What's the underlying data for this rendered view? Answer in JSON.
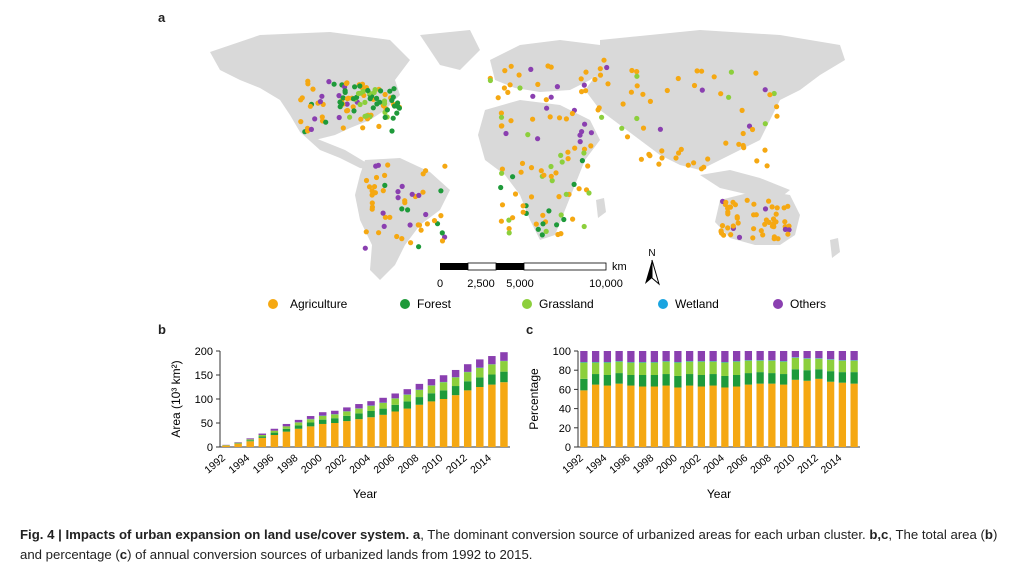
{
  "panels": {
    "a": "a",
    "b": "b",
    "c": "c"
  },
  "colors": {
    "Agriculture": "#f5a812",
    "Forest": "#1e9a3a",
    "Grassland": "#8ccf3c",
    "Wetland": "#1aa4e0",
    "Others": "#8a3fb0",
    "land": "#d9d9d9"
  },
  "map": {
    "scalebar_unit": "km",
    "scalebar_ticks": [
      "0",
      "2,500",
      "5,000",
      "10,000"
    ],
    "north_label": "N",
    "legend": [
      "Agriculture",
      "Forest",
      "Grassland",
      "Wetland",
      "Others"
    ]
  },
  "chart_data": [
    {
      "panel": "b",
      "type": "bar",
      "stacked": true,
      "xlabel": "Year",
      "ylabel": "Area (10³ km²)",
      "ylim": [
        0,
        200
      ],
      "yticks": [
        0,
        50,
        100,
        150,
        200
      ],
      "categories": [
        "1992",
        "1993",
        "1994",
        "1995",
        "1996",
        "1997",
        "1998",
        "1999",
        "2000",
        "2001",
        "2002",
        "2003",
        "2004",
        "2005",
        "2006",
        "2007",
        "2008",
        "2009",
        "2010",
        "2011",
        "2012",
        "2013",
        "2014",
        "2015"
      ],
      "xtick_labels": [
        "1992",
        "1994",
        "1996",
        "1998",
        "2000",
        "2002",
        "2004",
        "2006",
        "2008",
        "2010",
        "2012",
        "2014"
      ],
      "series": [
        {
          "name": "Agriculture",
          "values": [
            3,
            7,
            12,
            19,
            25,
            32,
            38,
            43,
            48,
            50,
            54,
            58,
            62,
            67,
            74,
            80,
            88,
            95,
            100,
            108,
            118,
            125,
            130,
            135
          ]
        },
        {
          "name": "Forest",
          "values": [
            0.5,
            1,
            2,
            3,
            5,
            6,
            7,
            8,
            9,
            10,
            11,
            12,
            13,
            13,
            14,
            15,
            16,
            17,
            18,
            19,
            19,
            20,
            21,
            22
          ]
        },
        {
          "name": "Grassland",
          "values": [
            0.5,
            1,
            2,
            3,
            4,
            5,
            6,
            7,
            8,
            8,
            9,
            10,
            11,
            12,
            13,
            14,
            15,
            16,
            17,
            18,
            19,
            20,
            21,
            22
          ]
        },
        {
          "name": "Wetland",
          "values": [
            0,
            0,
            0,
            0,
            0,
            0,
            0.5,
            0.5,
            0.5,
            0.5,
            0.5,
            0.5,
            0.5,
            0.5,
            0.5,
            0.5,
            0.5,
            0.5,
            0.5,
            0.5,
            0.5,
            0.5,
            0.5,
            0.5
          ]
        },
        {
          "name": "Others",
          "values": [
            0.5,
            1,
            2,
            3,
            4,
            5,
            5,
            6,
            7,
            7,
            8,
            9,
            9,
            10,
            10,
            11,
            12,
            13,
            14,
            15,
            16,
            17,
            17,
            18
          ]
        }
      ]
    },
    {
      "panel": "c",
      "type": "bar",
      "stacked": true,
      "xlabel": "Year",
      "ylabel": "Percentage",
      "ylim": [
        0,
        100
      ],
      "yticks": [
        0,
        20,
        40,
        60,
        80,
        100
      ],
      "categories": [
        "1992",
        "1993",
        "1994",
        "1995",
        "1996",
        "1997",
        "1998",
        "1999",
        "2000",
        "2001",
        "2002",
        "2003",
        "2004",
        "2005",
        "2006",
        "2007",
        "2008",
        "2009",
        "2010",
        "2011",
        "2012",
        "2013",
        "2014",
        "2015"
      ],
      "xtick_labels": [
        "1992",
        "1994",
        "1996",
        "1998",
        "2000",
        "2002",
        "2004",
        "2006",
        "2008",
        "2010",
        "2012",
        "2014"
      ],
      "series": [
        {
          "name": "Agriculture",
          "values": [
            59,
            65,
            64,
            66,
            64,
            63,
            63,
            64,
            62,
            64,
            63,
            64,
            62,
            63,
            65,
            66,
            66,
            65,
            70,
            69,
            71,
            68,
            67,
            66
          ]
        },
        {
          "name": "Forest",
          "values": [
            12,
            11,
            11,
            11,
            11,
            12,
            12,
            12,
            12,
            12,
            12,
            12,
            12,
            12,
            12,
            12,
            11,
            11,
            11,
            11,
            10,
            11,
            11,
            12
          ]
        },
        {
          "name": "Grassland",
          "values": [
            17,
            12,
            13,
            12,
            13,
            13,
            13,
            13,
            14,
            13,
            14,
            13,
            14,
            14,
            13,
            12,
            13,
            13,
            12,
            12,
            11,
            12,
            12,
            12
          ]
        },
        {
          "name": "Wetland",
          "values": [
            0.5,
            0.5,
            0.5,
            0.5,
            0.5,
            0.5,
            0.5,
            0.5,
            0.5,
            0.5,
            0.5,
            0.5,
            0.5,
            0.5,
            0.5,
            0.5,
            0.5,
            0.5,
            0.5,
            0.5,
            0.5,
            0.5,
            0.5,
            0.5
          ]
        },
        {
          "name": "Others",
          "values": [
            11.5,
            11.5,
            11.5,
            10.5,
            11.5,
            11.5,
            11.5,
            10.5,
            11.5,
            10.5,
            10.5,
            10.5,
            11.5,
            10.5,
            9.5,
            9.5,
            9.5,
            10.5,
            6.5,
            7.5,
            7.5,
            8.5,
            9.5,
            9.5
          ]
        }
      ]
    }
  ],
  "caption": {
    "lead": "Fig. 4 | Impacts of urban expansion on land use/cover system.",
    "a_label": "a",
    "a_text": ", The dominant conversion source of urbanized areas for each urban cluster.",
    "bc_label": "b,c",
    "bc_text": ", The total area (",
    "b_label": "b",
    "mid_text": ") and percentage (",
    "c_label": "c",
    "end_text": ") of annual conversion sources of urbanized lands from 1992 to 2015."
  }
}
